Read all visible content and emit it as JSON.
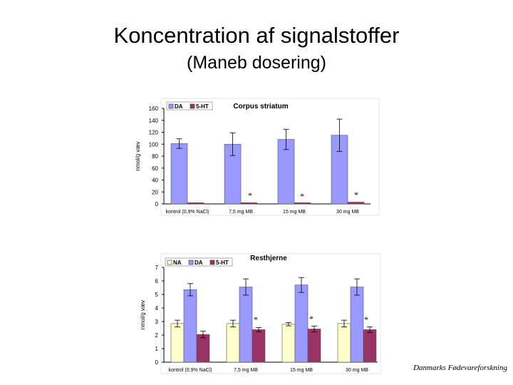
{
  "slide": {
    "title": "Koncentration af signalstoffer",
    "subtitle": "(Maneb dosering)",
    "footer": "Danmarks Fødevareforskning"
  },
  "colors": {
    "NA": "#ffffcc",
    "DA": "#9999ff",
    "5-HT": "#993366"
  },
  "chart_data": [
    {
      "type": "bar",
      "title": "Corpus striatum",
      "ylabel": "nmol/g væv",
      "ylim": [
        0,
        160
      ],
      "yticks": [
        0,
        20,
        40,
        60,
        80,
        100,
        120,
        140,
        160
      ],
      "categories": [
        "kontrol (0,9% NaCl)",
        "7,5 mg MB",
        "15 mg MB",
        "30 mg MB"
      ],
      "series": [
        {
          "name": "DA",
          "values": [
            101,
            100,
            108,
            115
          ],
          "errors": [
            8,
            19,
            17,
            27
          ]
        },
        {
          "name": "5-HT",
          "values": [
            2,
            2,
            2,
            3
          ],
          "errors": [
            0,
            0,
            0,
            0
          ]
        }
      ],
      "annotations": [
        "*",
        "*",
        "*"
      ],
      "legend": "top-left"
    },
    {
      "type": "bar",
      "title": "Resthjerne",
      "ylabel": "nmol/g væv",
      "ylim": [
        0,
        7
      ],
      "yticks": [
        0,
        1,
        2,
        3,
        4,
        5,
        6,
        7
      ],
      "categories": [
        "kontrol (0,9% NaCl)",
        "7,5 mg MB",
        "15 mg MB",
        "30 mg MB"
      ],
      "series": [
        {
          "name": "NA",
          "values": [
            2.85,
            2.85,
            2.8,
            2.85
          ],
          "errors": [
            0.25,
            0.25,
            0.12,
            0.25
          ]
        },
        {
          "name": "DA",
          "values": [
            5.35,
            5.55,
            5.7,
            5.55
          ],
          "errors": [
            0.45,
            0.6,
            0.55,
            0.6
          ]
        },
        {
          "name": "5-HT",
          "values": [
            2.05,
            2.4,
            2.45,
            2.4
          ],
          "errors": [
            0.25,
            0.15,
            0.22,
            0.2
          ]
        }
      ],
      "annotations": [
        "*",
        "*",
        "*"
      ],
      "legend": "top-left"
    }
  ]
}
